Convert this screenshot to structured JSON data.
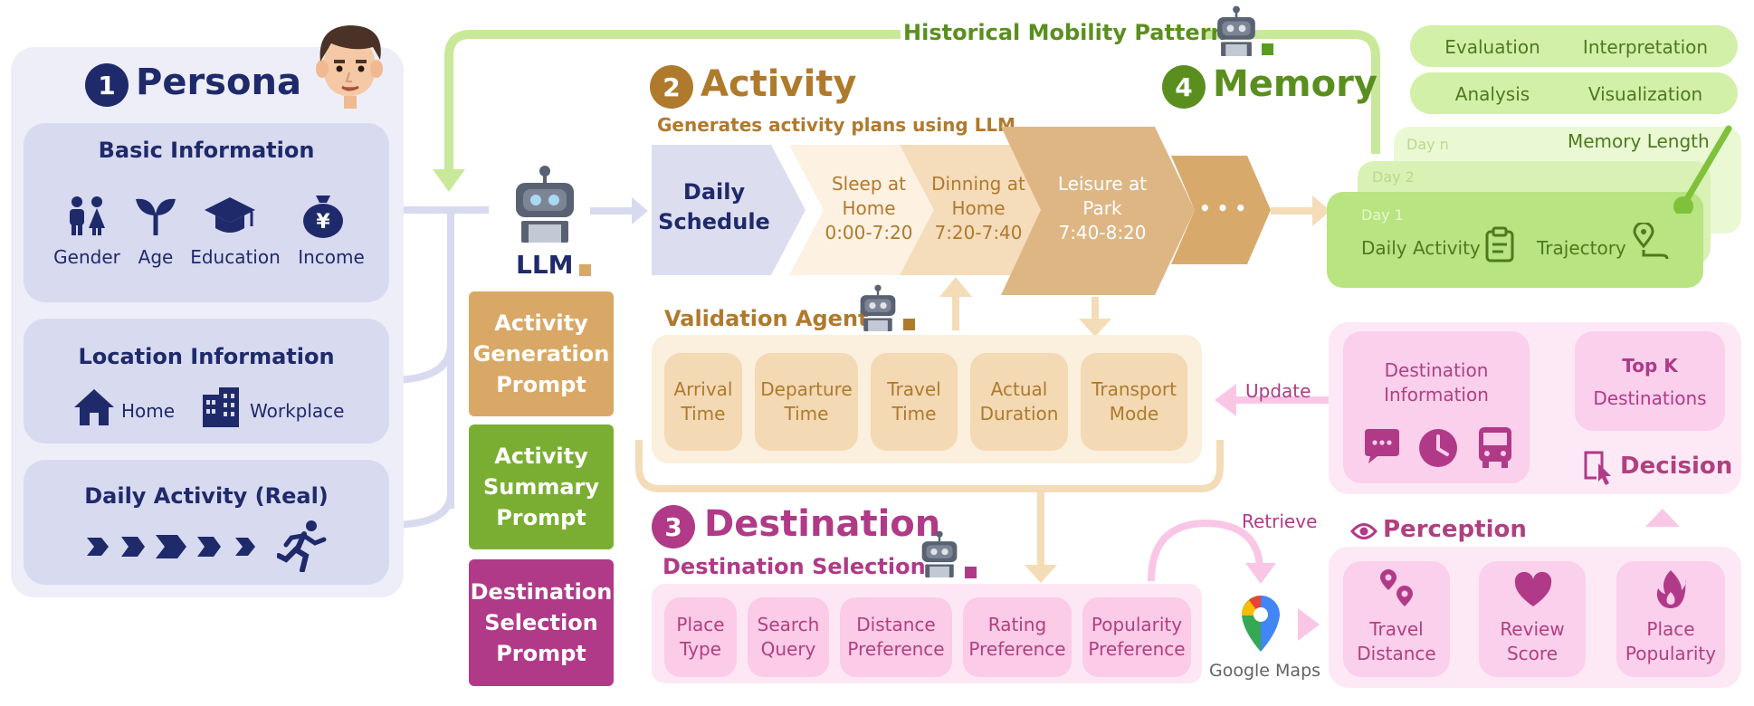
{
  "persona": {
    "number": "1",
    "title": "Persona",
    "basic_title": "Basic Information",
    "basic_items": [
      "Gender",
      "Age",
      "Education",
      "Income"
    ],
    "location_title": "Location Information",
    "location_items": [
      "Home",
      "Workplace"
    ],
    "daily_title": "Daily Activity (Real)"
  },
  "llm_label": "LLM",
  "history_label": "Historical Mobility Pattern",
  "activity": {
    "number": "2",
    "title": "Activity",
    "subtitle": "Generates activity plans using LLM",
    "schedule": [
      "Daily",
      "Schedule"
    ],
    "steps": [
      {
        "line1": "Sleep at",
        "line2": "Home",
        "line3": "0:00-7:20"
      },
      {
        "line1": "Dinning at",
        "line2": "Home",
        "line3": "7:20-7:40"
      },
      {
        "line1": "Leisure at",
        "line2": "Park",
        "line3": "7:40-8:20"
      }
    ],
    "ellipsis": "• • •"
  },
  "prompts": [
    {
      "lines": [
        "Activity",
        "Generation",
        "Prompt"
      ],
      "color": "#d9a866"
    },
    {
      "lines": [
        "Activity",
        "Summary",
        "Prompt"
      ],
      "color": "#7aae32"
    },
    {
      "lines": [
        "Destination",
        "Selection",
        "Prompt"
      ],
      "color": "#b03a87"
    }
  ],
  "validation": {
    "title": "Validation Agent",
    "items": [
      [
        "Arrival",
        "Time"
      ],
      [
        "Departure",
        "Time"
      ],
      [
        "Travel",
        "Time"
      ],
      [
        "Actual",
        "Duration"
      ],
      [
        "Transport",
        "Mode"
      ]
    ]
  },
  "destination": {
    "number": "3",
    "title": "Destination",
    "subtitle": "Destination Selection",
    "items": [
      [
        "Place",
        "Type"
      ],
      [
        "Search",
        "Query"
      ],
      [
        "Distance",
        "Preference"
      ],
      [
        "Rating",
        "Preference"
      ],
      [
        "Popularity",
        "Preference"
      ]
    ]
  },
  "memory": {
    "number": "4",
    "title": "Memory",
    "pills": [
      [
        "Evaluation",
        "Interpretation"
      ],
      [
        "Analysis",
        "Visualization"
      ]
    ],
    "memory_length": "Memory Length",
    "days": [
      "Day n",
      "Day 2",
      "Day 1"
    ],
    "day1_items": [
      "Daily Activity",
      "Trajectory"
    ]
  },
  "right": {
    "update": "Update",
    "retrieve": "Retrieve",
    "dest_info": [
      "Destination",
      "Information"
    ],
    "topk": [
      "Top K",
      "Destinations"
    ],
    "decision": "Decision",
    "perception": "Perception",
    "perception_items": [
      [
        "Travel",
        "Distance"
      ],
      [
        "Review",
        "Score"
      ],
      [
        "Place",
        "Popularity"
      ]
    ],
    "google_maps": "Google Maps"
  },
  "colors": {
    "navy": "#1f2a6b",
    "activity_brown": "#b07a2c",
    "memory_green": "#5a8f1f",
    "destination_pink": "#b03a87",
    "google_maps_text": "#5f6368"
  }
}
